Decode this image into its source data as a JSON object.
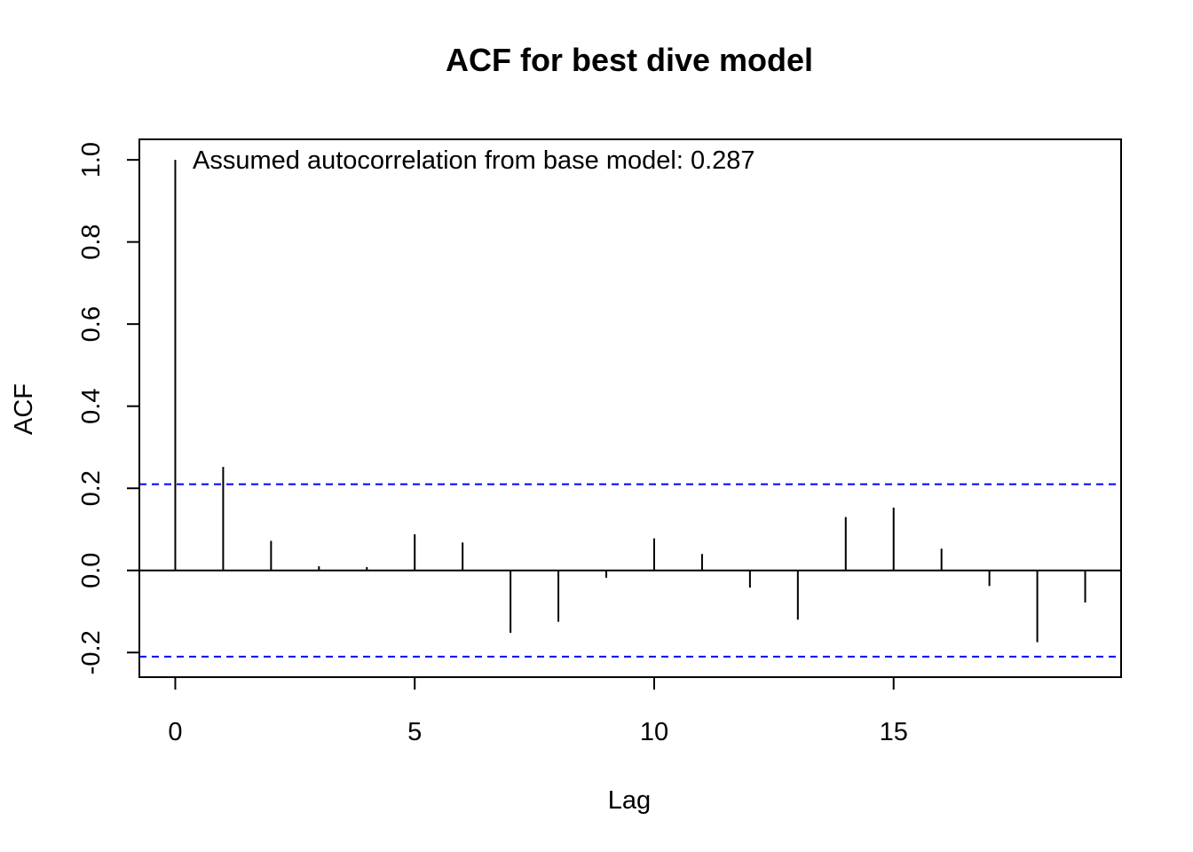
{
  "chart_data": {
    "type": "bar",
    "title": "ACF for best dive model",
    "xlabel": "Lag",
    "ylabel": "ACF",
    "annotation": "Assumed autocorrelation from base model: 0.287",
    "xlim": [
      -0.75,
      19.75
    ],
    "ylim": [
      -0.26,
      1.05
    ],
    "x_ticks": [
      0,
      5,
      10,
      15
    ],
    "x_tick_labels": [
      "0",
      "5",
      "10",
      "15"
    ],
    "y_ticks": [
      -0.2,
      0.0,
      0.2,
      0.4,
      0.6,
      0.8,
      1.0
    ],
    "y_tick_labels": [
      "-0.2",
      "0.0",
      "0.2",
      "0.4",
      "0.6",
      "0.8",
      "1.0"
    ],
    "lags": [
      0,
      1,
      2,
      3,
      4,
      5,
      6,
      7,
      8,
      9,
      10,
      11,
      12,
      13,
      14,
      15,
      16,
      17,
      18,
      19
    ],
    "values": [
      1.0,
      0.252,
      0.072,
      0.01,
      0.008,
      0.088,
      0.068,
      -0.152,
      -0.125,
      -0.018,
      0.078,
      0.04,
      -0.042,
      -0.12,
      0.13,
      0.153,
      0.053,
      -0.038,
      -0.175,
      -0.078
    ],
    "confidence_bound": 0.21,
    "colors": {
      "spikes": "#000000",
      "confidence_lines": "#0000ff",
      "zero_line": "#000000"
    },
    "grid": false
  }
}
